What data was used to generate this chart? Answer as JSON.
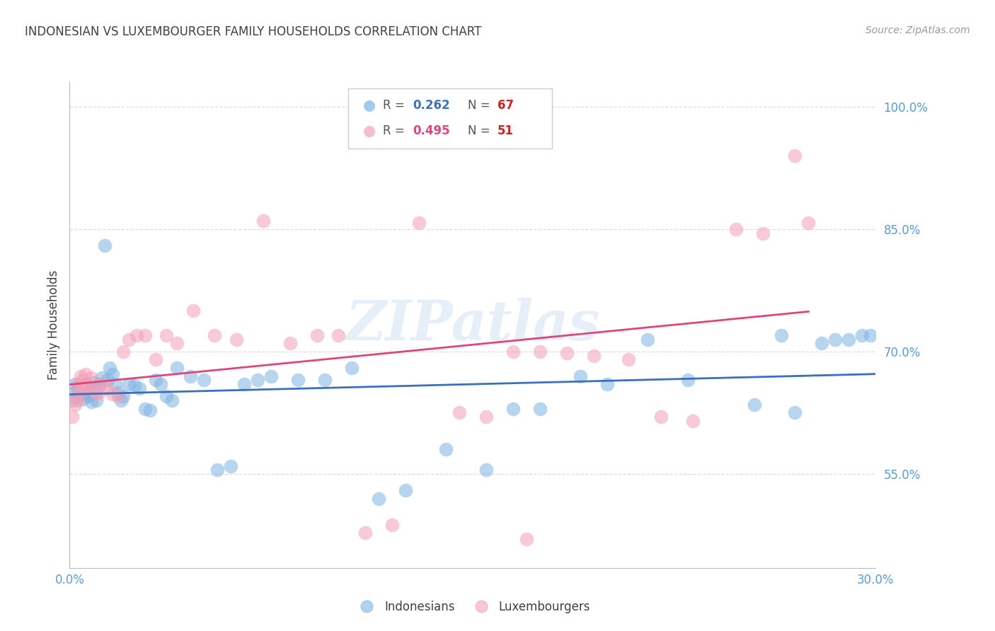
{
  "title": "INDONESIAN VS LUXEMBOURGER FAMILY HOUSEHOLDS CORRELATION CHART",
  "source": "Source: ZipAtlas.com",
  "ylabel": "Family Households",
  "ytick_labels": [
    "55.0%",
    "70.0%",
    "85.0%",
    "100.0%"
  ],
  "ytick_values": [
    0.55,
    0.7,
    0.85,
    1.0
  ],
  "xlim": [
    0.0,
    0.3
  ],
  "ylim": [
    0.435,
    1.03
  ],
  "legend_blue_r": "0.262",
  "legend_blue_n": "67",
  "legend_pink_r": "0.495",
  "legend_pink_n": "51",
  "legend_label_blue": "Indonesians",
  "legend_label_pink": "Luxembourgers",
  "blue_color": "#7EB4E2",
  "pink_color": "#F4A0B8",
  "blue_line_color": "#3B6FBF",
  "pink_line_color": "#E0457A",
  "axis_color": "#5B9BD5",
  "title_color": "#404040",
  "source_color": "#999999",
  "grid_color": "#DDDDDD",
  "blue_x": [
    0.001,
    0.002,
    0.002,
    0.003,
    0.003,
    0.004,
    0.004,
    0.005,
    0.005,
    0.006,
    0.006,
    0.007,
    0.007,
    0.008,
    0.008,
    0.009,
    0.009,
    0.01,
    0.01,
    0.011,
    0.012,
    0.013,
    0.014,
    0.015,
    0.016,
    0.017,
    0.018,
    0.019,
    0.02,
    0.022,
    0.024,
    0.026,
    0.028,
    0.03,
    0.032,
    0.034,
    0.036,
    0.038,
    0.04,
    0.045,
    0.05,
    0.055,
    0.06,
    0.065,
    0.07,
    0.075,
    0.085,
    0.095,
    0.105,
    0.115,
    0.125,
    0.14,
    0.155,
    0.165,
    0.175,
    0.19,
    0.2,
    0.215,
    0.23,
    0.255,
    0.265,
    0.27,
    0.28,
    0.285,
    0.29,
    0.295,
    0.298
  ],
  "blue_y": [
    0.64,
    0.65,
    0.66,
    0.645,
    0.655,
    0.648,
    0.658,
    0.652,
    0.642,
    0.66,
    0.65,
    0.655,
    0.645,
    0.638,
    0.648,
    0.652,
    0.662,
    0.64,
    0.655,
    0.66,
    0.668,
    0.83,
    0.665,
    0.68,
    0.672,
    0.66,
    0.65,
    0.64,
    0.645,
    0.66,
    0.658,
    0.655,
    0.63,
    0.628,
    0.665,
    0.66,
    0.645,
    0.64,
    0.68,
    0.67,
    0.665,
    0.555,
    0.56,
    0.66,
    0.665,
    0.67,
    0.665,
    0.665,
    0.68,
    0.52,
    0.53,
    0.58,
    0.555,
    0.63,
    0.63,
    0.67,
    0.66,
    0.715,
    0.665,
    0.635,
    0.72,
    0.625,
    0.71,
    0.715,
    0.715,
    0.72,
    0.72
  ],
  "pink_x": [
    0.001,
    0.002,
    0.002,
    0.003,
    0.003,
    0.004,
    0.004,
    0.005,
    0.005,
    0.006,
    0.006,
    0.007,
    0.008,
    0.009,
    0.01,
    0.011,
    0.012,
    0.014,
    0.016,
    0.018,
    0.02,
    0.022,
    0.025,
    0.028,
    0.032,
    0.036,
    0.04,
    0.046,
    0.054,
    0.062,
    0.072,
    0.082,
    0.092,
    0.1,
    0.11,
    0.12,
    0.13,
    0.145,
    0.155,
    0.165,
    0.175,
    0.185,
    0.195,
    0.208,
    0.22,
    0.232,
    0.248,
    0.258,
    0.27,
    0.275,
    0.17
  ],
  "pink_y": [
    0.62,
    0.635,
    0.645,
    0.64,
    0.66,
    0.65,
    0.67,
    0.665,
    0.658,
    0.672,
    0.66,
    0.655,
    0.668,
    0.652,
    0.648,
    0.65,
    0.66,
    0.655,
    0.648,
    0.645,
    0.7,
    0.715,
    0.72,
    0.72,
    0.69,
    0.72,
    0.71,
    0.75,
    0.72,
    0.715,
    0.86,
    0.71,
    0.72,
    0.72,
    0.478,
    0.488,
    0.858,
    0.625,
    0.62,
    0.7,
    0.7,
    0.698,
    0.695,
    0.69,
    0.62,
    0.615,
    0.85,
    0.845,
    0.94,
    0.858,
    0.47
  ]
}
